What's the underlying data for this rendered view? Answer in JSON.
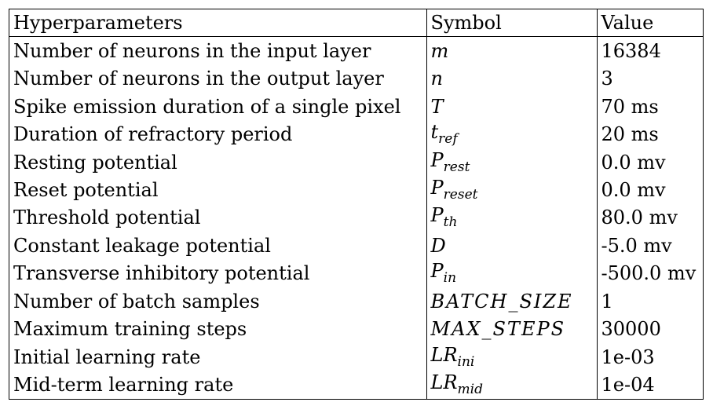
{
  "table": {
    "headers": {
      "name": "Hyperparameters",
      "symbol": "Symbol",
      "value": "Value"
    },
    "rows": [
      {
        "name": "Number of neurons in the input layer",
        "symbol": "m",
        "symbol_sub": "",
        "value": "16384"
      },
      {
        "name": "Number of neurons in the output layer",
        "symbol": "n",
        "symbol_sub": "",
        "value": "3"
      },
      {
        "name": "Spike emission duration of a single pixel",
        "symbol": "T",
        "symbol_sub": "",
        "value": "70 ms"
      },
      {
        "name": "Duration of refractory period",
        "symbol": "t",
        "symbol_sub": "ref",
        "value": "20 ms"
      },
      {
        "name": "Resting potential",
        "symbol": "P",
        "symbol_sub": "rest",
        "value": "0.0 mv"
      },
      {
        "name": "Reset potential",
        "symbol": "P",
        "symbol_sub": "reset",
        "value": "0.0 mv"
      },
      {
        "name": "Threshold potential",
        "symbol": "P",
        "symbol_sub": "th",
        "value": "80.0 mv"
      },
      {
        "name": "Constant leakage potential",
        "symbol": "D",
        "symbol_sub": "",
        "value": "-5.0 mv"
      },
      {
        "name": "Transverse inhibitory potential",
        "symbol": "P",
        "symbol_sub": "in",
        "value": "-500.0 mv"
      },
      {
        "name": "Number of batch samples",
        "symbol": "BATCH_SIZE",
        "symbol_sub": "",
        "value": "1"
      },
      {
        "name": "Maximum training steps",
        "symbol": "MAX_STEPS",
        "symbol_sub": "",
        "value": "30000"
      },
      {
        "name": "Initial learning rate",
        "symbol": "LR",
        "symbol_sub": "ini",
        "value": "1e-03"
      },
      {
        "name": "Mid-term learning rate",
        "symbol": "LR",
        "symbol_sub": "mid",
        "value": "1e-04"
      }
    ]
  }
}
